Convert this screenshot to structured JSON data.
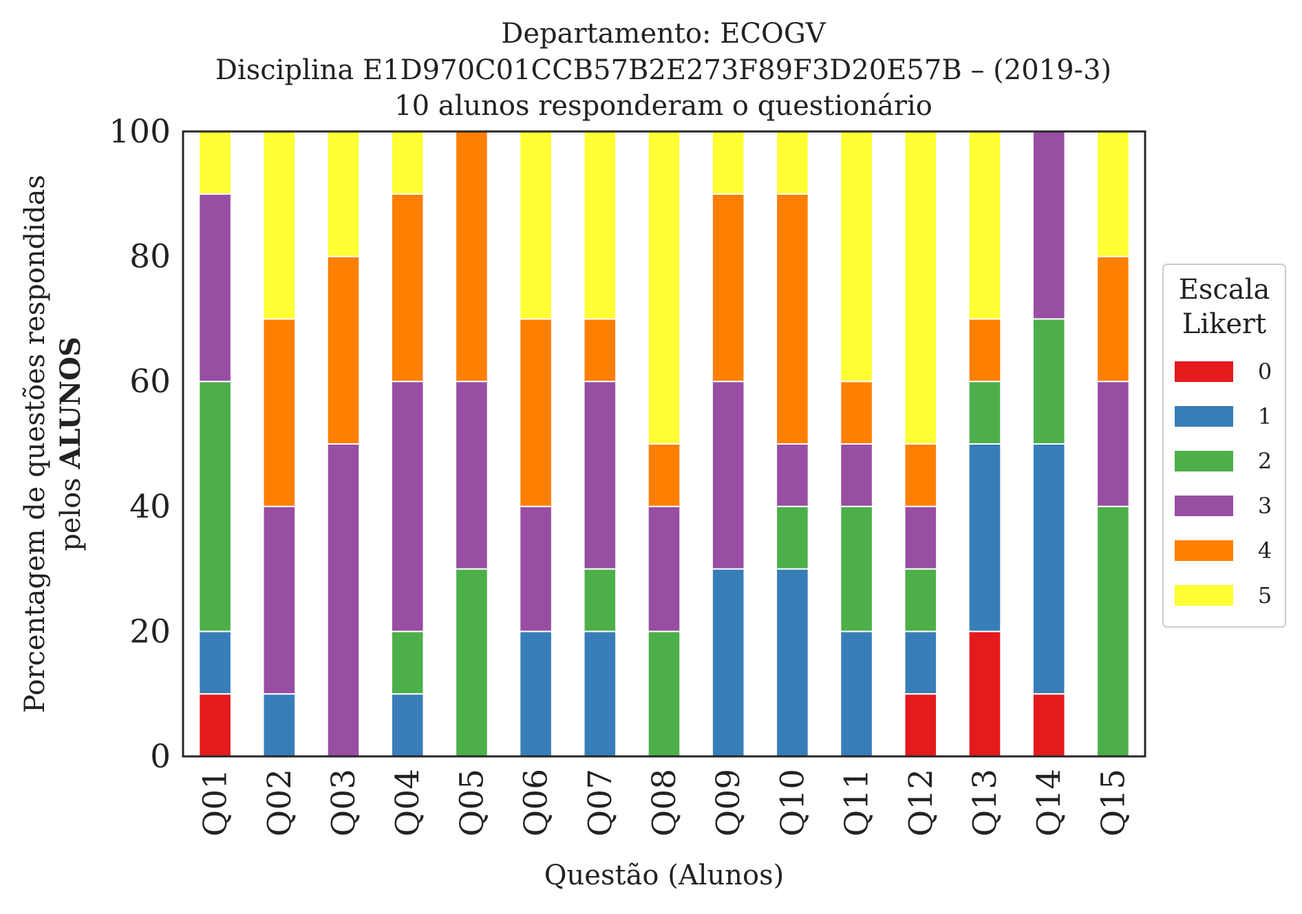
{
  "chart_data": {
    "type": "bar",
    "stacked": true,
    "title_lines": [
      "Departamento: ECOGV",
      "Disciplina E1D970C01CCB57B2E273F89F3D20E57B – (2019-3)",
      "10 alunos responderam o questionário"
    ],
    "xlabel": "Questão (Alunos)",
    "ylabel_line1": "Porcentagem de questões respondidas",
    "ylabel_line2_prefix": "pelos ",
    "ylabel_line2_bold": "ALUNOS",
    "ylim": [
      0,
      100
    ],
    "yticks": [
      "0",
      "20",
      "40",
      "60",
      "80",
      "100"
    ],
    "grid": false,
    "legend_position": "right",
    "legend_title_lines": [
      "Escala",
      "Likert"
    ],
    "categories": [
      "Q01",
      "Q02",
      "Q03",
      "Q04",
      "Q05",
      "Q06",
      "Q07",
      "Q08",
      "Q09",
      "Q10",
      "Q11",
      "Q12",
      "Q13",
      "Q14",
      "Q15"
    ],
    "series": [
      {
        "name": "0",
        "color": "#e41a1c",
        "values": [
          10,
          0,
          0,
          0,
          0,
          0,
          0,
          0,
          0,
          0,
          0,
          10,
          20,
          10,
          0
        ]
      },
      {
        "name": "1",
        "color": "#377eb8",
        "values": [
          10,
          10,
          0,
          10,
          0,
          20,
          20,
          0,
          30,
          30,
          20,
          10,
          30,
          40,
          0
        ]
      },
      {
        "name": "2",
        "color": "#4daf4a",
        "values": [
          40,
          0,
          0,
          10,
          30,
          0,
          10,
          20,
          0,
          10,
          20,
          10,
          10,
          20,
          40
        ]
      },
      {
        "name": "3",
        "color": "#984ea3",
        "values": [
          30,
          30,
          50,
          40,
          30,
          20,
          30,
          20,
          30,
          10,
          10,
          10,
          0,
          30,
          20
        ]
      },
      {
        "name": "4",
        "color": "#ff7f00",
        "values": [
          0,
          30,
          30,
          30,
          40,
          30,
          10,
          10,
          30,
          40,
          10,
          10,
          10,
          0,
          20
        ]
      },
      {
        "name": "5",
        "color": "#ffff33",
        "values": [
          10,
          30,
          20,
          10,
          0,
          30,
          30,
          50,
          10,
          10,
          40,
          50,
          30,
          0,
          20
        ]
      }
    ]
  }
}
